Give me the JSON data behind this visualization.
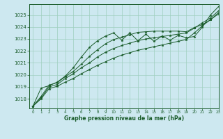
{
  "title": "Graphe pression niveau de la mer (hPa)",
  "background_color": "#cde8f0",
  "grid_color": "#9ecfbe",
  "line_color": "#1a5c2a",
  "xlim": [
    -0.5,
    23
  ],
  "ylim": [
    1017.2,
    1025.9
  ],
  "yticks": [
    1018,
    1019,
    1020,
    1021,
    1022,
    1023,
    1024,
    1025
  ],
  "xticks": [
    0,
    1,
    2,
    3,
    4,
    5,
    6,
    7,
    8,
    9,
    10,
    11,
    12,
    13,
    14,
    15,
    16,
    17,
    18,
    19,
    20,
    21,
    22,
    23
  ],
  "series_zigzag": {
    "x": [
      0,
      1,
      2,
      3,
      4,
      5,
      6,
      7,
      8,
      9,
      10,
      11,
      12,
      13,
      14,
      15,
      16,
      17,
      18,
      19,
      20,
      21,
      22,
      23
    ],
    "y": [
      1017.4,
      1018.9,
      1019.1,
      1019.4,
      1019.9,
      1020.6,
      1021.5,
      1022.3,
      1022.85,
      1023.25,
      1023.5,
      1022.9,
      1023.5,
      1022.85,
      1023.4,
      1022.8,
      1023.25,
      1022.9,
      1023.3,
      1023.1,
      1023.2,
      1024.0,
      1025.0,
      1025.7
    ]
  },
  "series_low": {
    "x": [
      0,
      1,
      2,
      3,
      4,
      5,
      6,
      7,
      8,
      9,
      10,
      11,
      12,
      13,
      14,
      15,
      16,
      17,
      18,
      19,
      20,
      21,
      22,
      23
    ],
    "y": [
      1017.4,
      1018.0,
      1018.85,
      1019.05,
      1019.4,
      1019.7,
      1020.1,
      1020.45,
      1020.8,
      1021.1,
      1021.4,
      1021.65,
      1021.85,
      1022.05,
      1022.2,
      1022.35,
      1022.5,
      1022.65,
      1022.8,
      1022.95,
      1023.5,
      1024.1,
      1024.6,
      1025.2
    ]
  },
  "series_mid": {
    "x": [
      0,
      1,
      2,
      3,
      4,
      5,
      6,
      7,
      8,
      9,
      10,
      11,
      12,
      13,
      14,
      15,
      16,
      17,
      18,
      19,
      20,
      21,
      22,
      23
    ],
    "y": [
      1017.4,
      1018.1,
      1019.0,
      1019.2,
      1019.7,
      1020.1,
      1020.6,
      1021.0,
      1021.5,
      1021.9,
      1022.2,
      1022.45,
      1022.65,
      1022.85,
      1023.0,
      1023.1,
      1023.2,
      1023.3,
      1023.4,
      1023.5,
      1023.9,
      1024.35,
      1024.75,
      1025.35
    ]
  },
  "series_high": {
    "x": [
      0,
      1,
      2,
      3,
      4,
      5,
      6,
      7,
      8,
      9,
      10,
      11,
      12,
      13,
      14,
      15,
      16,
      17,
      18,
      19,
      20,
      21,
      22,
      23
    ],
    "y": [
      1017.4,
      1018.2,
      1019.15,
      1019.35,
      1019.85,
      1020.3,
      1020.9,
      1021.55,
      1022.1,
      1022.6,
      1022.95,
      1023.15,
      1023.35,
      1023.55,
      1023.6,
      1023.65,
      1023.65,
      1023.65,
      1023.65,
      1023.6,
      1023.95,
      1024.2,
      1024.6,
      1025.1
    ]
  }
}
